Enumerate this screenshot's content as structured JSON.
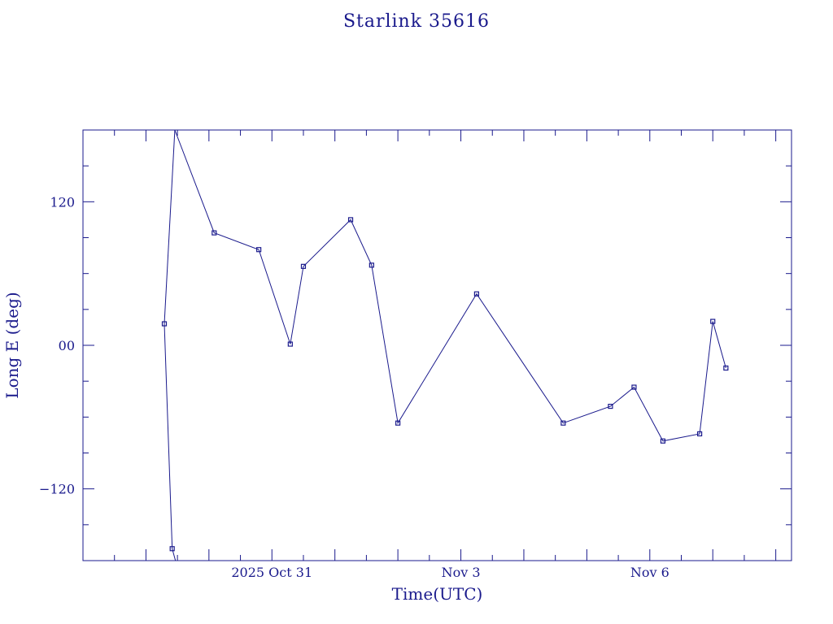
{
  "chart_data": {
    "type": "line",
    "title": "Starlink 35616",
    "xlabel": "Time(UTC)",
    "ylabel": "Long E (deg)",
    "ylim": [
      -180,
      180
    ],
    "xlim": [
      "2025-10-28T00:00",
      "2025-11-08T06:00"
    ],
    "x_tick_labels": [
      {
        "t": "2025-10-31T00:00",
        "label": "2025 Oct 31"
      },
      {
        "t": "2025-11-03T00:00",
        "label": "Nov  3"
      },
      {
        "t": "2025-11-06T00:00",
        "label": "Nov  6"
      }
    ],
    "y_tick_labels": [
      {
        "value": 120,
        "label": "120"
      },
      {
        "value": 0,
        "label": "00"
      },
      {
        "value": -120,
        "label": "−120"
      }
    ],
    "grid": false,
    "color": "#1a1a8c",
    "series": [
      {
        "points": [
          {
            "t": "2025-10-29T07:00",
            "value": 18
          },
          {
            "t": "2025-10-29T10:00",
            "value": -170,
            "wrap_to": 180,
            "wrap_t": "2025-10-29T11:00"
          },
          {
            "t": "2025-10-30T02:00",
            "value": 94
          },
          {
            "t": "2025-10-30T19:00",
            "value": 80
          },
          {
            "t": "2025-10-31T07:00",
            "value": 1
          },
          {
            "t": "2025-10-31T12:00",
            "value": 66
          },
          {
            "t": "2025-11-01T06:00",
            "value": 105
          },
          {
            "t": "2025-11-01T14:00",
            "value": 67
          },
          {
            "t": "2025-11-02T00:00",
            "value": -65
          },
          {
            "t": "2025-11-03T06:00",
            "value": 43
          },
          {
            "t": "2025-11-04T15:00",
            "value": -65
          },
          {
            "t": "2025-11-05T09:00",
            "value": -51
          },
          {
            "t": "2025-11-05T18:00",
            "value": -35
          },
          {
            "t": "2025-11-06T05:00",
            "value": -80
          },
          {
            "t": "2025-11-06T19:00",
            "value": -74
          },
          {
            "t": "2025-11-07T00:00",
            "value": 20
          },
          {
            "t": "2025-11-07T05:00",
            "value": -19
          }
        ]
      }
    ]
  }
}
